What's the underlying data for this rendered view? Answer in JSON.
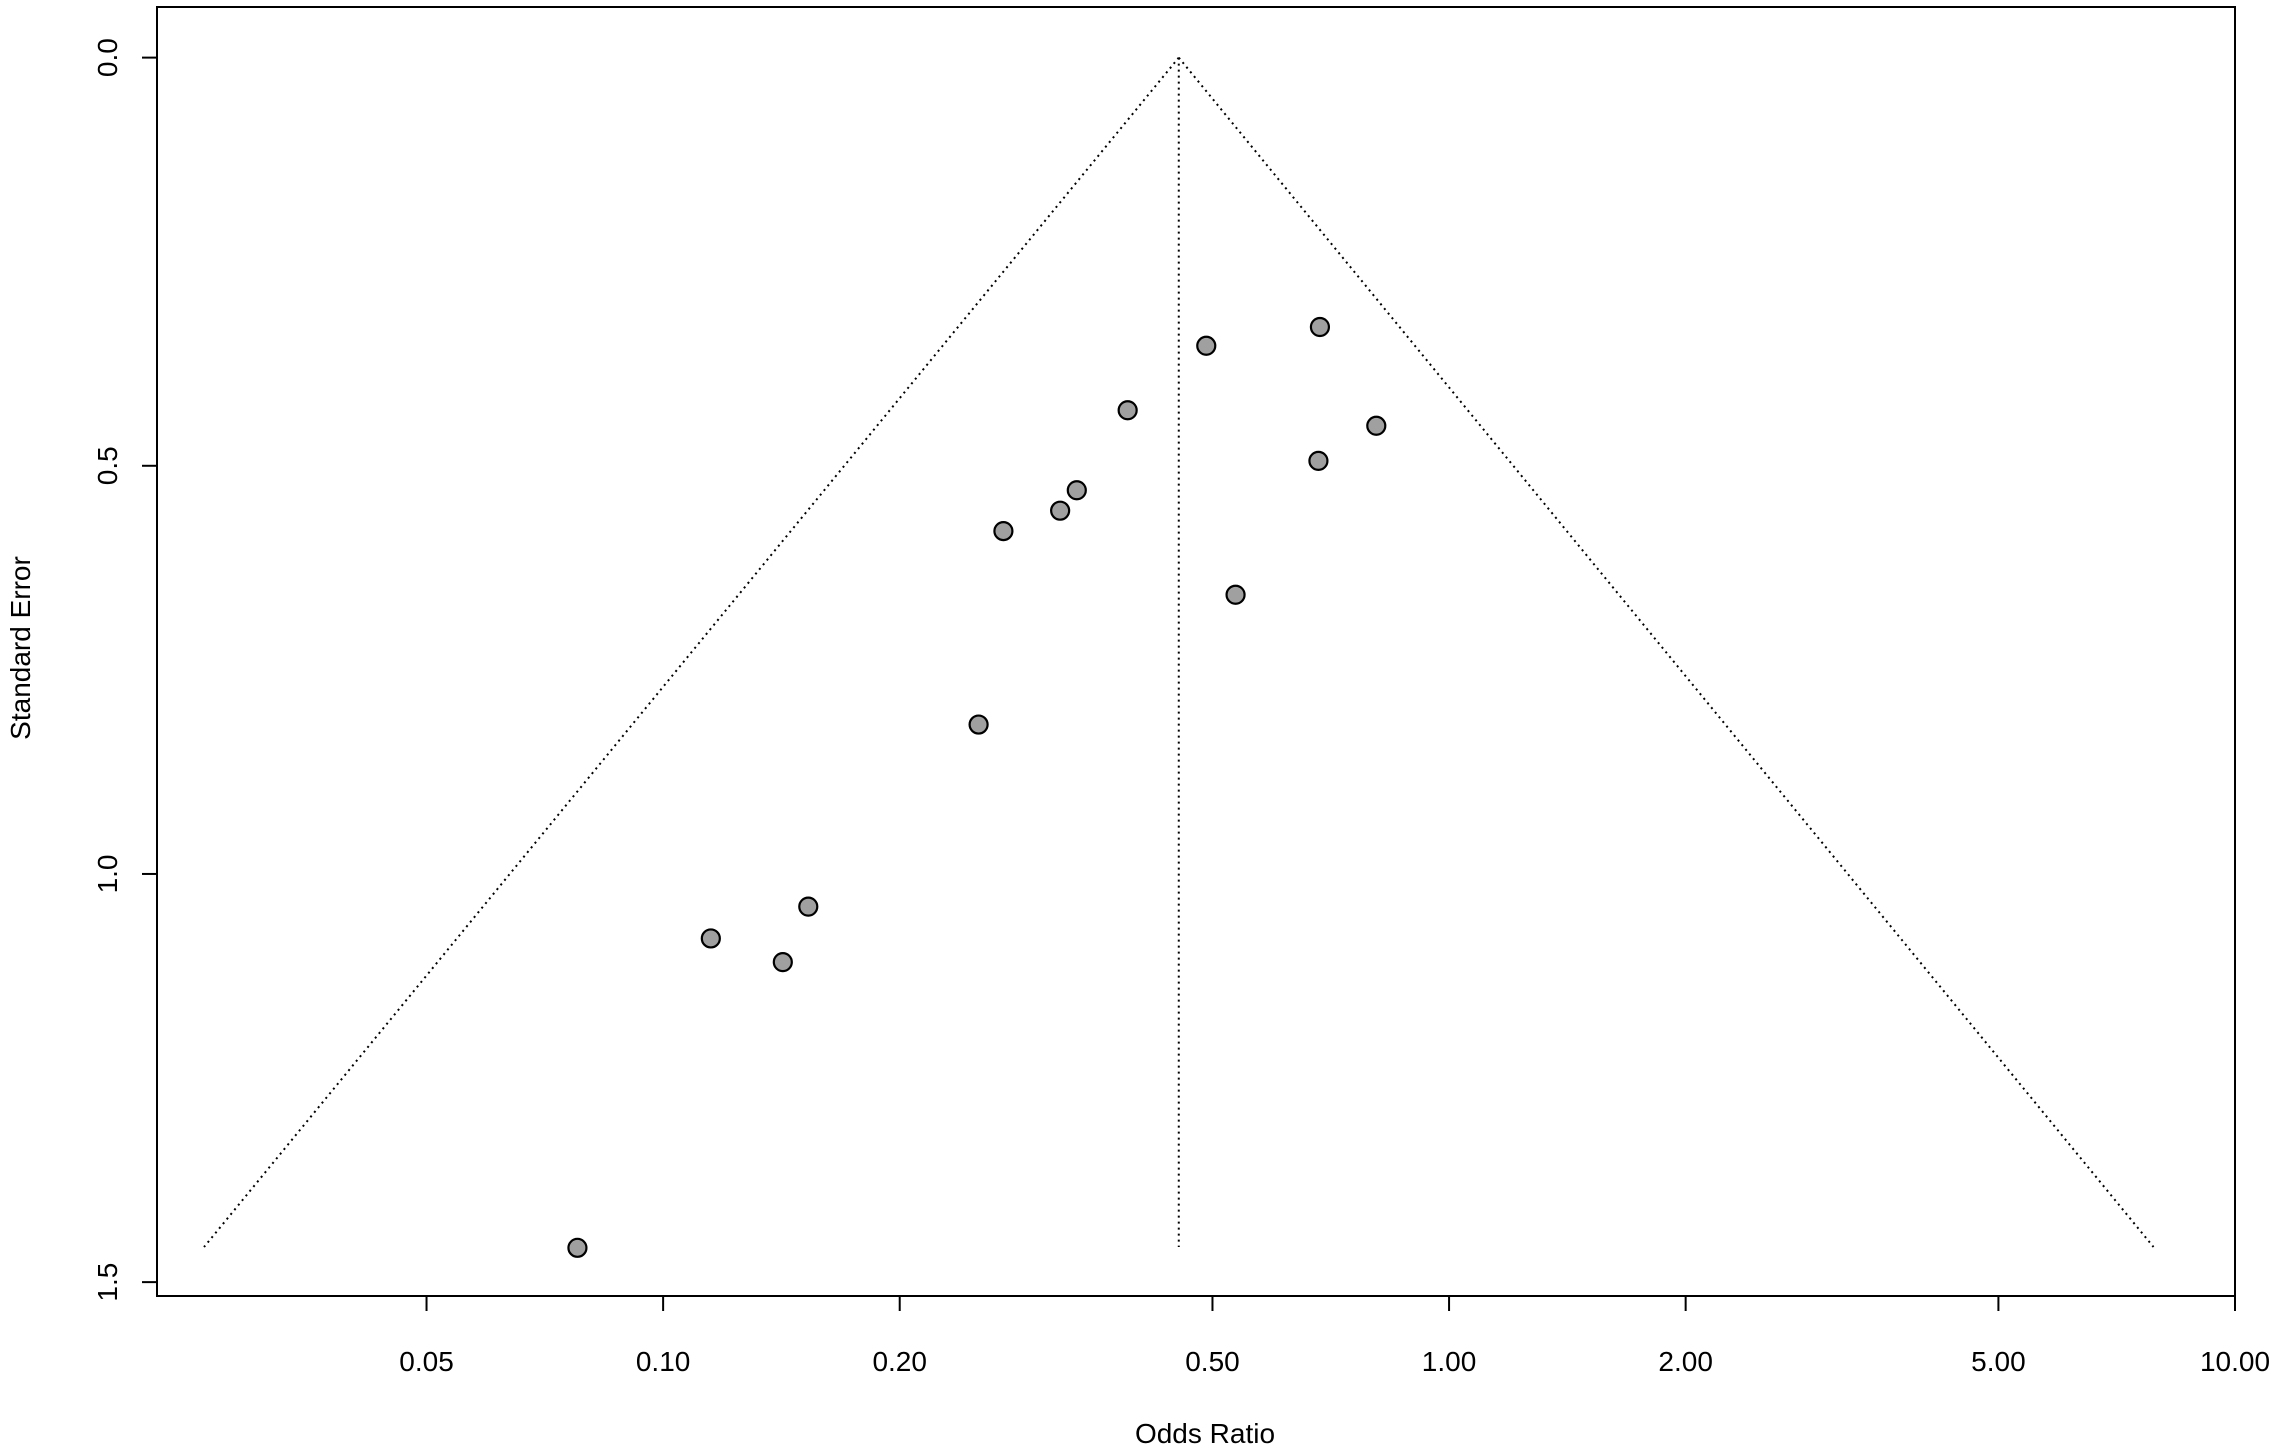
{
  "chart_data": {
    "type": "scatter",
    "x_label": "Odds Ratio",
    "y_label": "Standard Error",
    "x": [
      0.685,
      0.491,
      0.39,
      0.808,
      0.682,
      0.336,
      0.32,
      0.271,
      0.535,
      0.252,
      0.153,
      0.115,
      0.142,
      0.0778
    ],
    "values": [
      0.33,
      0.353,
      0.432,
      0.451,
      0.494,
      0.53,
      0.555,
      0.58,
      0.658,
      0.817,
      1.04,
      1.079,
      1.108,
      1.458
    ],
    "color": "#a0a0a0",
    "summary_or": 0.453,
    "funnel_se_max": 1.457,
    "x_log": true,
    "xlim": [
      0.0227,
      10.0
    ],
    "xticks": [
      {
        "value": 0.05,
        "label": "0.05"
      },
      {
        "value": 0.1,
        "label": "0.10"
      },
      {
        "value": 0.2,
        "label": "0.20"
      },
      {
        "value": 0.5,
        "label": "0.50"
      },
      {
        "value": 1,
        "label": "1.00"
      },
      {
        "value": 2,
        "label": "2.00"
      },
      {
        "value": 5,
        "label": "5.00"
      },
      {
        "value": 10,
        "label": "10.00"
      }
    ],
    "ylim": [
      -0.062,
      1.517
    ],
    "y_inverted": true,
    "yticks": [
      {
        "value": 0,
        "label": "0.0"
      },
      {
        "value": 0.5,
        "label": "0.5"
      },
      {
        "value": 1,
        "label": "1.0"
      },
      {
        "value": 1.5,
        "label": "1.5"
      }
    ]
  }
}
